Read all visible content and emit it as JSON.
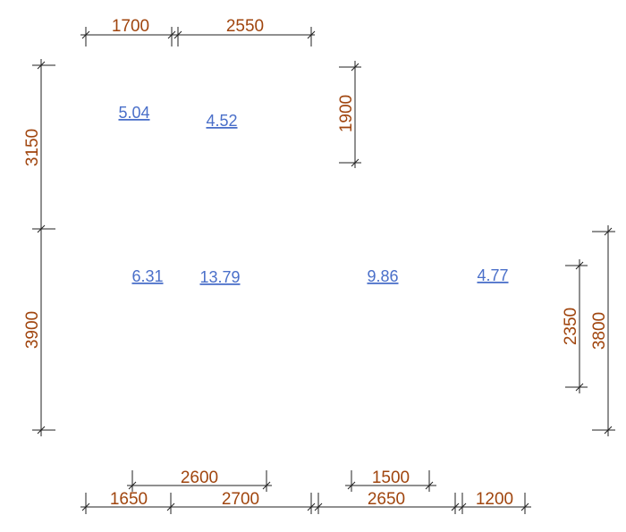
{
  "colors": {
    "dimension_text": "#a0450e",
    "area_text": "#4a6fc9",
    "line": "#222222",
    "background": "#ffffff"
  },
  "dimensions": {
    "top": [
      "1700",
      "2550"
    ],
    "left": [
      "3150",
      "3900"
    ],
    "mid_vertical": "1900",
    "right_inner": "2350",
    "right_outer": "3800",
    "bottom_upper": [
      "2600",
      "1500"
    ],
    "bottom_lower": [
      "1650",
      "2700",
      "2650",
      "1200"
    ]
  },
  "areas": [
    "5.04",
    "4.52",
    "6.31",
    "13.79",
    "9.86",
    "4.77"
  ]
}
